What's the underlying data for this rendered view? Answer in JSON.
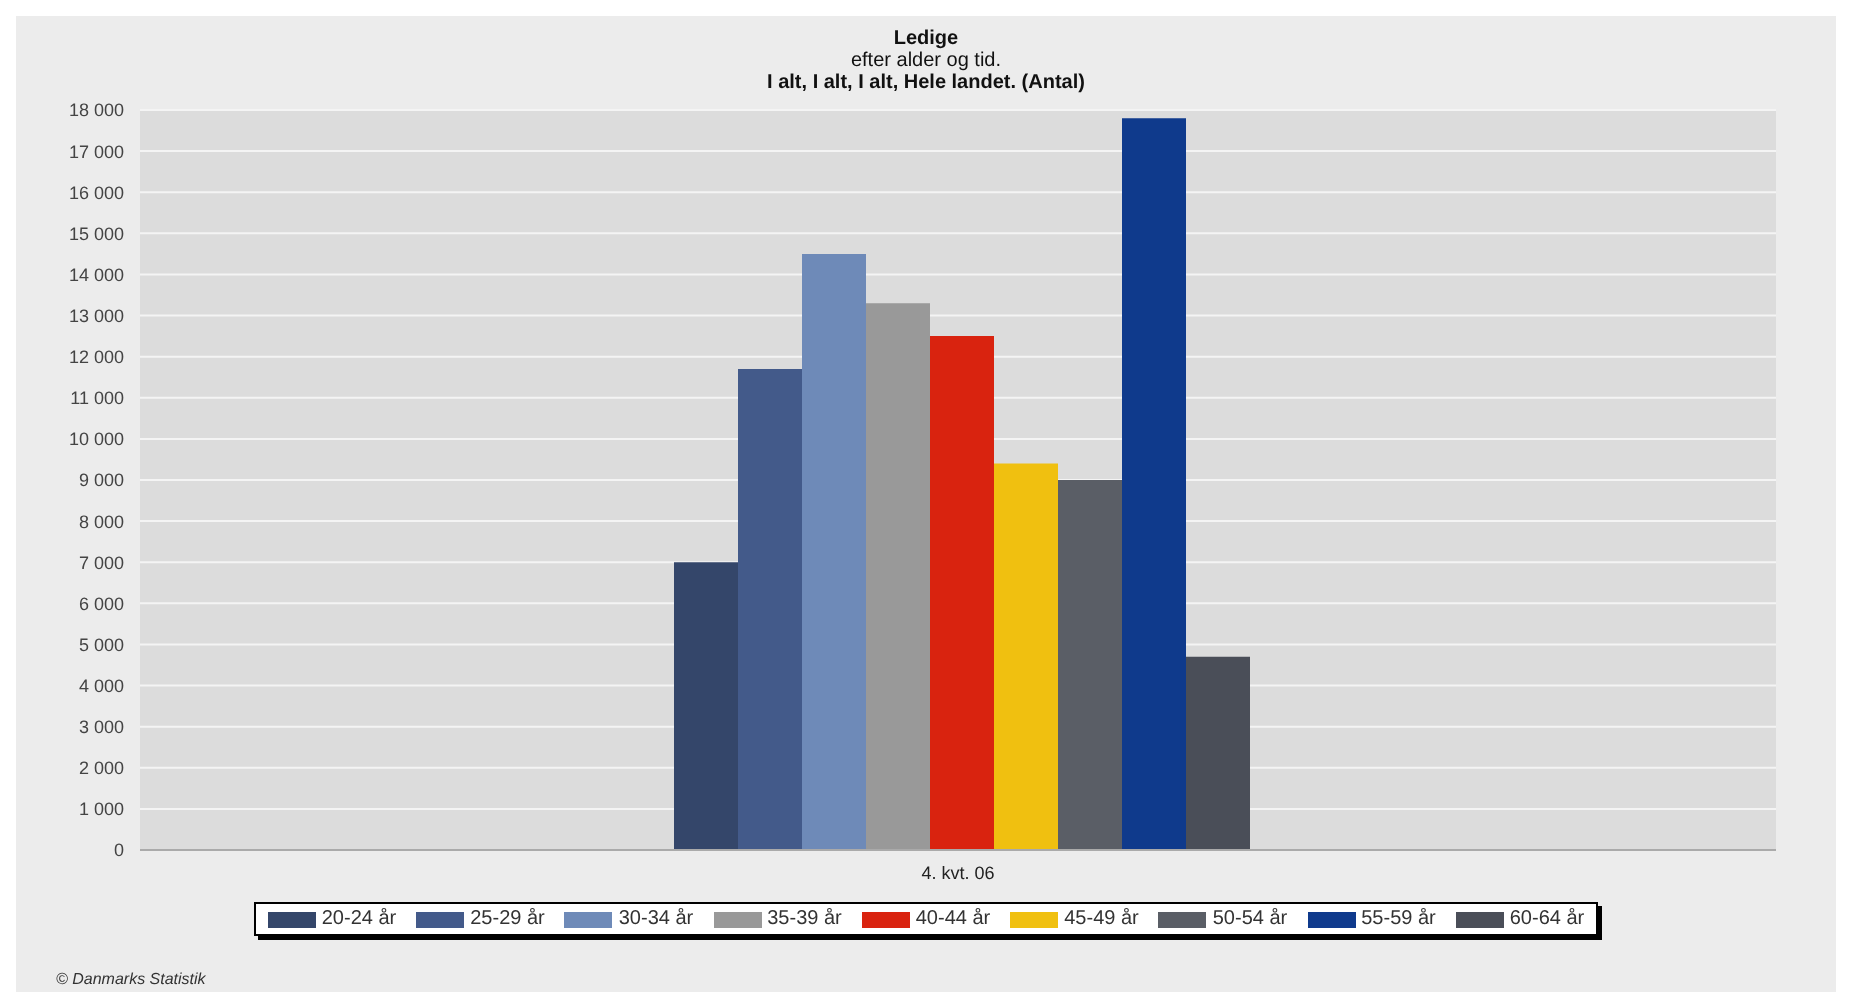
{
  "chart_data": {
    "type": "bar",
    "title": "Ledige",
    "subtitle": "efter alder og tid.\nI alt, I alt, I alt, Hele landet. (Antal)",
    "categories": [
      "4. kvt. 06"
    ],
    "series": [
      {
        "name": "20-24 år",
        "color": "#34466a",
        "values": [
          7000
        ]
      },
      {
        "name": "25-29 år",
        "color": "#435a8a",
        "values": [
          11700
        ]
      },
      {
        "name": "30-34 år",
        "color": "#6e8ab8",
        "values": [
          14500
        ]
      },
      {
        "name": "35-39 år",
        "color": "#999999",
        "values": [
          13300
        ]
      },
      {
        "name": "40-44 år",
        "color": "#d9230f",
        "values": [
          12500
        ]
      },
      {
        "name": "45-49 år",
        "color": "#f0c010",
        "values": [
          9400
        ]
      },
      {
        "name": "50-54 år",
        "color": "#5a5e66",
        "values": [
          9000
        ]
      },
      {
        "name": "55-59 år",
        "color": "#0f3a8c",
        "values": [
          17800
        ]
      },
      {
        "name": "60-64 år",
        "color": "#4a4e58",
        "values": [
          4700
        ]
      }
    ],
    "ylim": [
      0,
      18000
    ],
    "yticks": [
      0,
      {
        "value": 1000,
        "label": "1 000"
      },
      {
        "value": 2000,
        "label": "2 000"
      },
      {
        "value": 3000,
        "label": "3 000"
      },
      {
        "value": 4000,
        "label": "4 000"
      },
      {
        "value": 5000,
        "label": "5 000"
      },
      {
        "value": 6000,
        "label": "6 000"
      },
      {
        "value": 7000,
        "label": "7 000"
      },
      {
        "value": 8000,
        "label": "8 000"
      },
      {
        "value": 9000,
        "label": "9 000"
      },
      {
        "value": 10000,
        "label": "10 000"
      },
      {
        "value": 11000,
        "label": "11 000"
      },
      {
        "value": 12000,
        "label": "12 000"
      },
      {
        "value": 13000,
        "label": "13 000"
      },
      {
        "value": 14000,
        "label": "14 000"
      },
      {
        "value": 15000,
        "label": "15 000"
      },
      {
        "value": 16000,
        "label": "16 000"
      },
      {
        "value": 17000,
        "label": "17 000"
      },
      {
        "value": 18000,
        "label": "18 000"
      }
    ],
    "grid": "y",
    "legend": "bottom",
    "annotations": [
      "© Danmarks Statistik"
    ]
  }
}
